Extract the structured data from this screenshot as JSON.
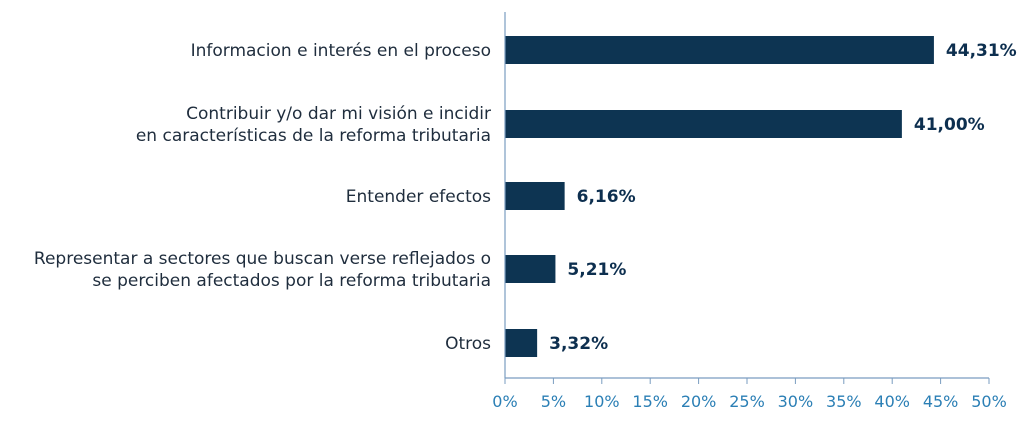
{
  "chart_data": {
    "type": "bar",
    "orientation": "horizontal",
    "title": "",
    "xlabel": "",
    "ylabel": "",
    "categories": [
      [
        "Informacion e interés en el proceso"
      ],
      [
        "Contribuir y/o dar mi visión e incidir",
        "en características de la reforma tributaria"
      ],
      [
        "Entender efectos"
      ],
      [
        "Representar a sectores que buscan verse reflejados o",
        "se perciben afectados por la reforma tributaria"
      ],
      [
        "Otros"
      ]
    ],
    "values": [
      44.31,
      41.0,
      6.16,
      5.21,
      3.32
    ],
    "value_labels": [
      "44,31%",
      "41,00%",
      "6,16%",
      "5,21%",
      "3,32%"
    ],
    "xlim": [
      0,
      50
    ],
    "ticks": [
      0,
      5,
      10,
      15,
      20,
      25,
      30,
      35,
      40,
      45,
      50
    ],
    "tick_labels": [
      "0%",
      "5%",
      "10%",
      "15%",
      "20%",
      "25%",
      "30%",
      "35%",
      "40%",
      "45%",
      "50%"
    ],
    "grid": false,
    "legend": "none",
    "colors": {
      "bar": "#0d3452",
      "axis": "#7a9cc0",
      "tick_text": "#2b7fb5",
      "label_text": "#1f2d3d",
      "value_text": "#0d2f4f"
    }
  }
}
